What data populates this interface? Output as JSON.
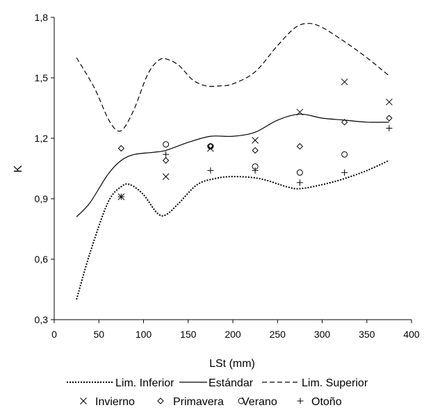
{
  "chart_data": {
    "type": "line",
    "xlabel": "LSt (mm)",
    "ylabel": "K",
    "xlim": [
      0,
      400
    ],
    "ylim": [
      0.3,
      1.8
    ],
    "xticks": [
      "0",
      "50",
      "100",
      "150",
      "200",
      "250",
      "300",
      "350",
      "400"
    ],
    "yticks": [
      "0,3",
      "0,6",
      "0,9",
      "1,2",
      "1,5",
      "1,8"
    ],
    "grid": false,
    "legend_position": "bottom",
    "line_series": [
      {
        "name": "Lim. Inferior",
        "style": "dotted",
        "x": [
          25,
          40,
          60,
          75,
          85,
          100,
          115,
          125,
          140,
          160,
          180,
          200,
          230,
          260,
          275,
          300,
          325,
          350,
          375
        ],
        "y": [
          0.4,
          0.63,
          0.88,
          0.96,
          0.97,
          0.92,
          0.83,
          0.82,
          0.88,
          0.97,
          1.0,
          1.01,
          1.0,
          0.96,
          0.95,
          0.97,
          1.0,
          1.04,
          1.09
        ]
      },
      {
        "name": "Estándar",
        "style": "solid",
        "x": [
          25,
          40,
          60,
          75,
          90,
          110,
          125,
          150,
          175,
          200,
          225,
          250,
          275,
          300,
          325,
          350,
          375
        ],
        "y": [
          0.81,
          0.88,
          1.02,
          1.09,
          1.12,
          1.13,
          1.14,
          1.18,
          1.21,
          1.21,
          1.23,
          1.29,
          1.32,
          1.3,
          1.29,
          1.28,
          1.28
        ]
      },
      {
        "name": "Lim. Superior",
        "style": "dashed",
        "x": [
          25,
          45,
          60,
          70,
          78,
          90,
          105,
          118,
          128,
          140,
          155,
          170,
          185,
          200,
          225,
          250,
          270,
          285,
          300,
          325,
          350,
          375
        ],
        "y": [
          1.6,
          1.45,
          1.3,
          1.24,
          1.25,
          1.35,
          1.52,
          1.59,
          1.59,
          1.56,
          1.49,
          1.46,
          1.46,
          1.47,
          1.53,
          1.66,
          1.75,
          1.77,
          1.75,
          1.68,
          1.6,
          1.51
        ]
      }
    ],
    "point_series": [
      {
        "name": "Invierno",
        "marker": "x",
        "symbol": "×",
        "x": [
          75,
          125,
          175,
          225,
          275,
          325,
          375
        ],
        "y": [
          0.91,
          1.01,
          1.15,
          1.19,
          1.33,
          1.48,
          1.38
        ]
      },
      {
        "name": "Primavera",
        "marker": "diamond",
        "symbol": "◇",
        "x": [
          75,
          125,
          175,
          225,
          275,
          325,
          375
        ],
        "y": [
          1.15,
          1.09,
          1.16,
          1.14,
          1.16,
          1.28,
          1.3
        ]
      },
      {
        "name": "Verano",
        "marker": "circle",
        "symbol": "○",
        "x": [
          125,
          175,
          225,
          275,
          325
        ],
        "y": [
          1.17,
          1.16,
          1.06,
          1.03,
          1.12
        ]
      },
      {
        "name": "Otoño",
        "marker": "plus",
        "symbol": "+",
        "x": [
          75,
          125,
          175,
          225,
          275,
          325,
          375
        ],
        "y": [
          0.91,
          1.12,
          1.04,
          1.04,
          0.98,
          1.03,
          1.25
        ]
      }
    ]
  }
}
